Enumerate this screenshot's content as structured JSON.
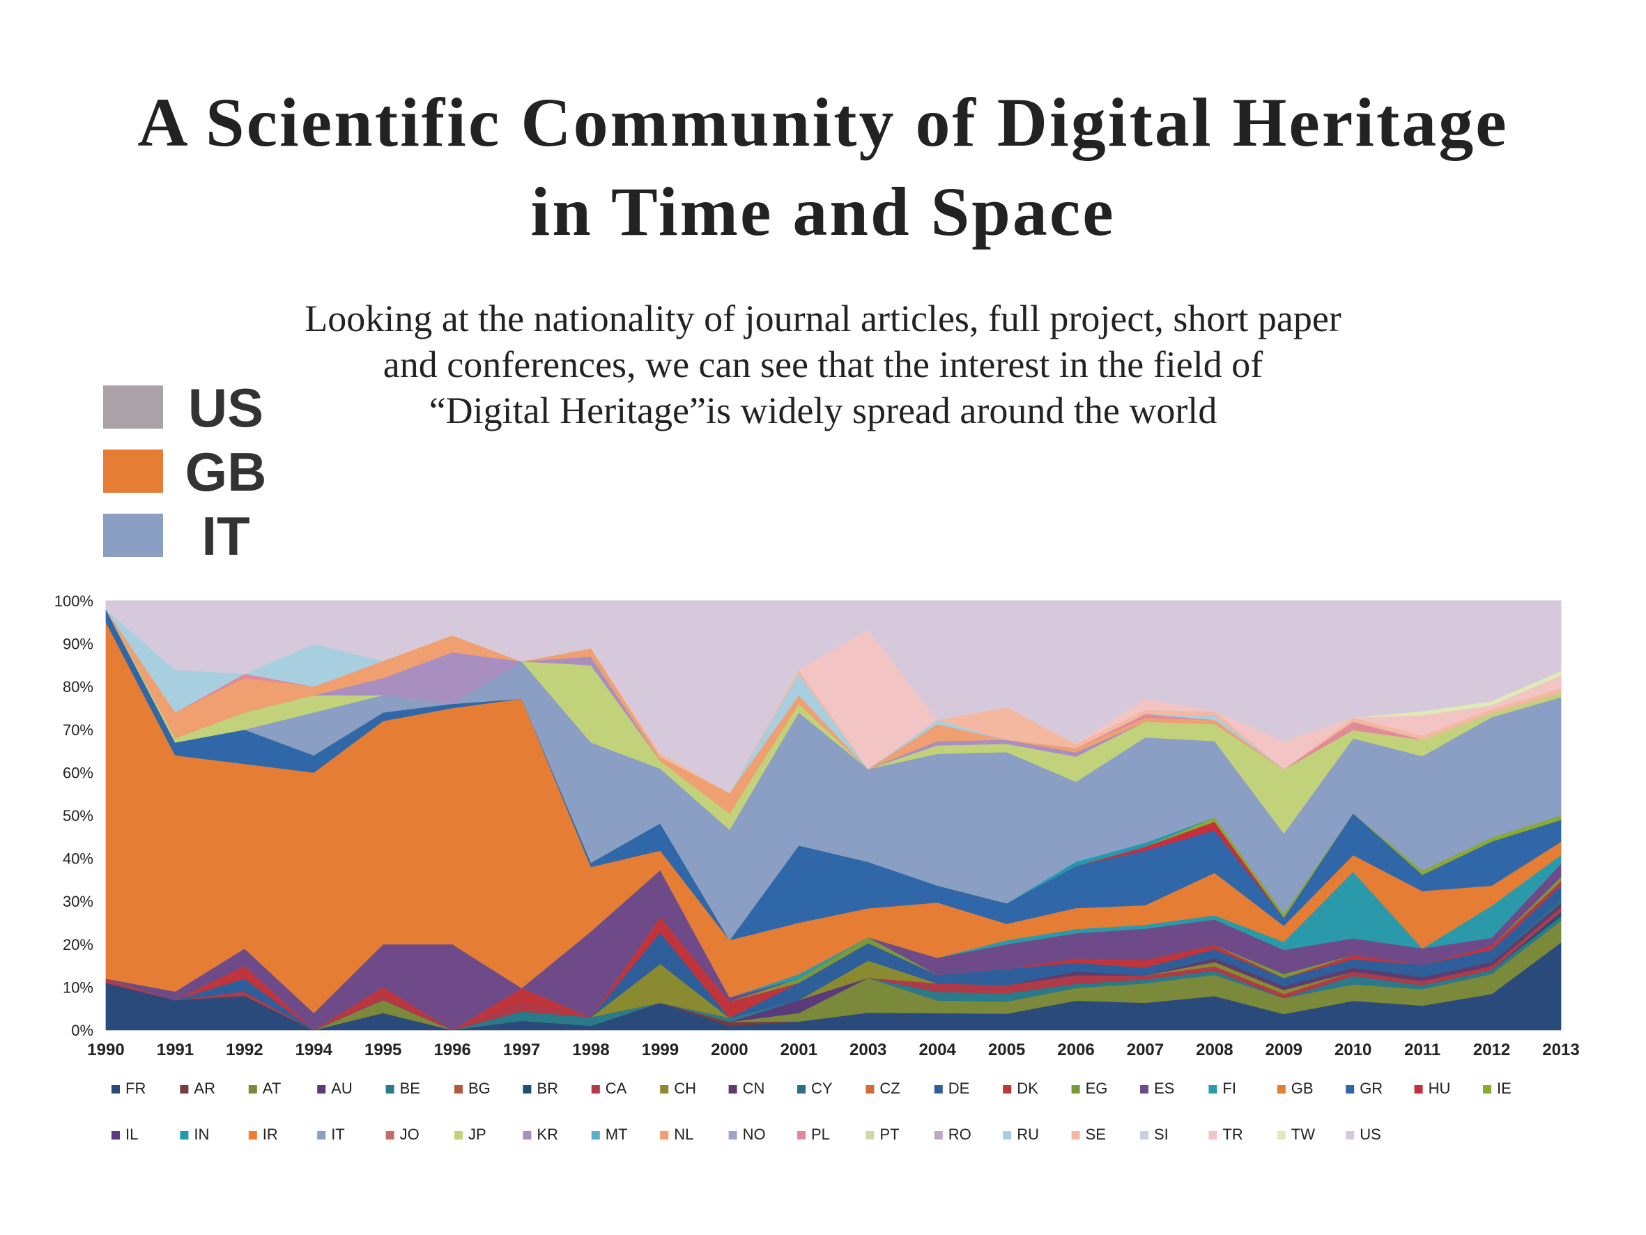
{
  "title_lines": [
    "A Scientific Community of Digital Heritage",
    "in Time and Space"
  ],
  "subtitle_lines": [
    "Looking at the nationality of journal articles, full project, short paper",
    "and conferences, we can see that the interest in the field of",
    "“Digital Heritage”is widely spread around the world"
  ],
  "highlight_legend": [
    {
      "label": "US",
      "color": "#aaa2a6"
    },
    {
      "label": "GB",
      "color": "#e57e34"
    },
    {
      "label": "IT",
      "color": "#8b9ec4"
    }
  ],
  "chart_data": {
    "type": "area",
    "stacked": true,
    "normalized": true,
    "ylim": [
      0,
      100
    ],
    "y_ticks": [
      "0%",
      "10%",
      "20%",
      "30%",
      "40%",
      "50%",
      "60%",
      "70%",
      "80%",
      "90%",
      "100%"
    ],
    "categories": [
      "1990",
      "1991",
      "1992",
      "1994",
      "1995",
      "1996",
      "1997",
      "1998",
      "1999",
      "2000",
      "2001",
      "2003",
      "2004",
      "2005",
      "2006",
      "2007",
      "2008",
      "2009",
      "2010",
      "2011",
      "2012",
      "2013"
    ],
    "legend_placement": "bottom",
    "series": [
      {
        "name": "FR",
        "color": "#2a4a7c",
        "values": [
          11,
          7,
          8,
          0,
          4,
          0,
          2,
          1,
          7,
          1,
          2,
          3,
          4,
          4,
          7,
          7,
          8,
          4,
          7,
          6,
          9,
          20
        ]
      },
      {
        "name": "AR",
        "color": "#7a3a3e",
        "values": [
          0,
          0,
          0,
          0,
          0,
          0,
          0,
          0,
          0,
          1,
          0,
          0,
          0,
          0,
          0,
          0,
          0,
          0,
          0,
          0,
          0,
          0
        ]
      },
      {
        "name": "AT",
        "color": "#7a8a3a",
        "values": [
          0,
          0,
          0,
          0,
          3,
          0,
          0,
          0,
          0,
          0,
          2,
          6,
          3,
          3,
          3,
          5,
          5,
          4,
          4,
          4,
          5,
          5
        ]
      },
      {
        "name": "AU",
        "color": "#5a3a7a",
        "values": [
          0,
          0,
          0,
          0,
          0,
          0,
          0,
          0,
          0,
          0,
          3,
          0,
          0,
          0,
          0,
          0,
          0,
          0,
          0,
          0,
          0,
          0
        ]
      },
      {
        "name": "BE",
        "color": "#2a7a8a",
        "values": [
          0,
          0,
          0,
          0,
          0,
          0,
          2,
          2,
          0,
          1,
          0,
          0,
          2,
          2,
          1,
          1,
          1,
          0,
          2,
          1,
          1,
          1
        ]
      },
      {
        "name": "BG",
        "color": "#b05a3a",
        "values": [
          0,
          0,
          0,
          0,
          0,
          0,
          0,
          0,
          0,
          0,
          0,
          0,
          0,
          0,
          0,
          0,
          0,
          0,
          0,
          0,
          0,
          0
        ]
      },
      {
        "name": "BR",
        "color": "#1f4e79",
        "values": [
          0,
          0,
          0,
          0,
          0,
          0,
          0,
          0,
          0,
          0,
          0,
          0,
          0,
          0,
          0,
          0,
          0,
          0,
          0,
          0,
          0,
          1
        ]
      },
      {
        "name": "CA",
        "color": "#b03a48",
        "values": [
          1,
          0,
          1,
          0,
          1,
          0,
          2,
          0,
          0,
          0,
          0,
          0,
          2,
          2,
          2,
          1,
          1,
          1,
          1,
          1,
          1,
          1
        ]
      },
      {
        "name": "CH",
        "color": "#8a8a30",
        "values": [
          0,
          0,
          0,
          0,
          0,
          0,
          0,
          0,
          10,
          0,
          0,
          3,
          0,
          0,
          0,
          0,
          1,
          1,
          0,
          0,
          0,
          0
        ]
      },
      {
        "name": "CN",
        "color": "#5e3c6e",
        "values": [
          0,
          0,
          0,
          0,
          0,
          0,
          0,
          0,
          0,
          0,
          0,
          0,
          0,
          0,
          1,
          0,
          1,
          1,
          1,
          1,
          1,
          1
        ]
      },
      {
        "name": "CY",
        "color": "#2a6e8a",
        "values": [
          0,
          0,
          0,
          0,
          0,
          0,
          0,
          0,
          0,
          0,
          0,
          0,
          0,
          0,
          0,
          0,
          0,
          0,
          0,
          0,
          0,
          1
        ]
      },
      {
        "name": "CZ",
        "color": "#d06a3a",
        "values": [
          0,
          0,
          0,
          0,
          0,
          0,
          0,
          0,
          0,
          0,
          0,
          0,
          0,
          0,
          0,
          0,
          0,
          0,
          0,
          0,
          0,
          0
        ]
      },
      {
        "name": "DE",
        "color": "#2e5f9a",
        "values": [
          0,
          0,
          3,
          0,
          0,
          0,
          0,
          0,
          8,
          0,
          4,
          3,
          2,
          4,
          2,
          2,
          2,
          2,
          2,
          3,
          3,
          3
        ]
      },
      {
        "name": "DK",
        "color": "#c0343c",
        "values": [
          0,
          0,
          3,
          0,
          2,
          0,
          3,
          0,
          4,
          4,
          0,
          0,
          0,
          0,
          1,
          2,
          1,
          0,
          1,
          0,
          1,
          1
        ]
      },
      {
        "name": "EG",
        "color": "#7a9a3a",
        "values": [
          0,
          0,
          0,
          0,
          0,
          0,
          0,
          0,
          0,
          0,
          1,
          1,
          0,
          0,
          0,
          0,
          0,
          1,
          0,
          0,
          0,
          1
        ]
      },
      {
        "name": "ES",
        "color": "#6e4a88",
        "values": [
          0,
          2,
          4,
          4,
          10,
          20,
          0,
          20,
          12,
          1,
          0,
          0,
          4,
          6,
          6,
          8,
          6,
          6,
          4,
          4,
          2,
          3
        ]
      },
      {
        "name": "FI",
        "color": "#2a9aaa",
        "values": [
          0,
          0,
          0,
          0,
          0,
          0,
          0,
          0,
          0,
          0,
          1,
          0,
          0,
          1,
          1,
          1,
          1,
          2,
          16,
          0,
          8,
          2
        ]
      },
      {
        "name": "GB",
        "color": "#e57e34",
        "values": [
          83,
          55,
          43,
          56,
          52,
          55,
          62,
          15,
          5,
          14,
          12,
          5,
          13,
          4,
          5,
          5,
          10,
          4,
          4,
          14,
          5,
          3
        ]
      },
      {
        "name": "GR",
        "color": "#2f67a8",
        "values": [
          3,
          3,
          8,
          4,
          2,
          1,
          0,
          1,
          7,
          0,
          18,
          8,
          4,
          5,
          10,
          14,
          10,
          2,
          10,
          4,
          11,
          5
        ]
      },
      {
        "name": "HU",
        "color": "#c82e3e",
        "values": [
          0,
          0,
          0,
          0,
          0,
          0,
          0,
          0,
          0,
          0,
          0,
          0,
          0,
          0,
          0,
          1,
          2,
          0,
          0,
          0,
          0,
          0
        ]
      },
      {
        "name": "IE",
        "color": "#8aaa30",
        "values": [
          0,
          0,
          0,
          0,
          0,
          0,
          0,
          0,
          0,
          0,
          0,
          0,
          0,
          0,
          0,
          0,
          1,
          1,
          0,
          1,
          1,
          1
        ]
      },
      {
        "name": "IL",
        "color": "#5a3a80",
        "values": [
          0,
          0,
          0,
          0,
          0,
          0,
          0,
          0,
          0,
          0,
          0,
          0,
          0,
          0,
          0,
          0,
          0,
          0,
          0,
          0,
          0,
          0
        ]
      },
      {
        "name": "IN",
        "color": "#1f9ab0",
        "values": [
          0,
          0,
          0,
          0,
          0,
          0,
          0,
          0,
          0,
          0,
          0,
          0,
          0,
          0,
          1,
          1,
          0,
          0,
          0,
          0,
          0,
          0
        ]
      },
      {
        "name": "IR",
        "color": "#ef7c30",
        "values": [
          0,
          0,
          0,
          0,
          0,
          0,
          0,
          0,
          0,
          0,
          0,
          0,
          0,
          0,
          0,
          0,
          0,
          0,
          0,
          0,
          0,
          0
        ]
      },
      {
        "name": "IT",
        "color": "#8b9ec4",
        "values": [
          0,
          0,
          0,
          10,
          4,
          0,
          8,
          28,
          14,
          27,
          31,
          16,
          31,
          37,
          19,
          27,
          18,
          20,
          18,
          28,
          30,
          27
        ]
      },
      {
        "name": "JO",
        "color": "#c86a6a",
        "values": [
          0,
          0,
          0,
          0,
          0,
          0,
          0,
          0,
          0,
          0,
          0,
          0,
          0,
          0,
          0,
          0,
          0,
          0,
          0,
          0,
          0,
          0
        ]
      },
      {
        "name": "JP",
        "color": "#c2d27a",
        "values": [
          0,
          1,
          4,
          4,
          0,
          0,
          0,
          18,
          2,
          4,
          2,
          0,
          2,
          2,
          6,
          4,
          4,
          16,
          2,
          4,
          1,
          1
        ]
      },
      {
        "name": "KR",
        "color": "#a88fc0",
        "values": [
          0,
          0,
          0,
          0,
          4,
          12,
          0,
          2,
          0,
          0,
          0,
          0,
          1,
          1,
          1,
          0,
          0,
          0,
          0,
          0,
          0,
          0
        ]
      },
      {
        "name": "MT",
        "color": "#5ab0c8",
        "values": [
          0,
          0,
          0,
          0,
          0,
          0,
          0,
          0,
          0,
          0,
          0,
          0,
          0,
          0,
          0,
          0,
          0,
          0,
          0,
          0,
          0,
          0
        ]
      },
      {
        "name": "NL",
        "color": "#f0a070",
        "values": [
          0,
          6,
          8,
          2,
          4,
          4,
          0,
          2,
          1,
          5,
          2,
          0,
          4,
          0,
          1,
          1,
          1,
          0,
          0,
          0,
          0,
          0
        ]
      },
      {
        "name": "NO",
        "color": "#9aa6c8",
        "values": [
          0,
          0,
          0,
          0,
          0,
          0,
          0,
          0,
          0,
          0,
          0,
          0,
          0,
          0,
          0,
          0,
          0,
          0,
          0,
          0,
          0,
          0
        ]
      },
      {
        "name": "PL",
        "color": "#e08a9a",
        "values": [
          0,
          0,
          1,
          0,
          0,
          0,
          0,
          0,
          0,
          0,
          0,
          0,
          0,
          0,
          0,
          1,
          0,
          0,
          2,
          0,
          0,
          0
        ]
      },
      {
        "name": "PT",
        "color": "#cfd9a8",
        "values": [
          0,
          0,
          0,
          0,
          0,
          0,
          0,
          0,
          0,
          0,
          0,
          0,
          0,
          0,
          0,
          0,
          0,
          0,
          0,
          0,
          0,
          0
        ]
      },
      {
        "name": "RO",
        "color": "#b9aac8",
        "values": [
          0,
          0,
          0,
          0,
          0,
          0,
          0,
          0,
          0,
          0,
          0,
          0,
          0,
          0,
          0,
          0,
          0,
          0,
          0,
          0,
          0,
          0
        ]
      },
      {
        "name": "RU",
        "color": "#a8cfe0",
        "values": [
          0,
          10,
          0,
          10,
          0,
          0,
          0,
          0,
          0,
          0,
          5,
          0,
          1,
          0,
          0,
          0,
          1,
          0,
          0,
          0,
          0,
          0
        ]
      },
      {
        "name": "SE",
        "color": "#f4b8a0",
        "values": [
          0,
          0,
          0,
          0,
          0,
          0,
          0,
          0,
          1,
          0,
          1,
          0,
          0,
          8,
          1,
          1,
          1,
          0,
          1,
          1,
          1,
          1
        ]
      },
      {
        "name": "SI",
        "color": "#c8d0e0",
        "values": [
          0,
          0,
          0,
          0,
          0,
          0,
          0,
          0,
          0,
          0,
          0,
          0,
          0,
          0,
          0,
          0,
          0,
          0,
          0,
          0,
          0,
          0
        ]
      },
      {
        "name": "TR",
        "color": "#f2c4c4",
        "values": [
          0,
          0,
          0,
          0,
          0,
          0,
          0,
          0,
          0,
          0,
          0,
          24,
          0,
          0,
          0,
          3,
          0,
          7,
          0,
          5,
          1,
          3
        ]
      },
      {
        "name": "TW",
        "color": "#e0eab8",
        "values": [
          0,
          0,
          0,
          0,
          0,
          0,
          0,
          0,
          0,
          0,
          0,
          0,
          0,
          0,
          0,
          0,
          0,
          0,
          0,
          1,
          1,
          1
        ]
      },
      {
        "name": "US",
        "color": "#d6c9dc",
        "values": [
          2,
          16,
          17,
          10,
          14,
          8,
          13,
          11,
          39,
          47,
          16,
          5,
          28,
          26,
          34,
          25,
          26,
          35,
          28,
          27,
          25,
          16
        ]
      }
    ]
  }
}
